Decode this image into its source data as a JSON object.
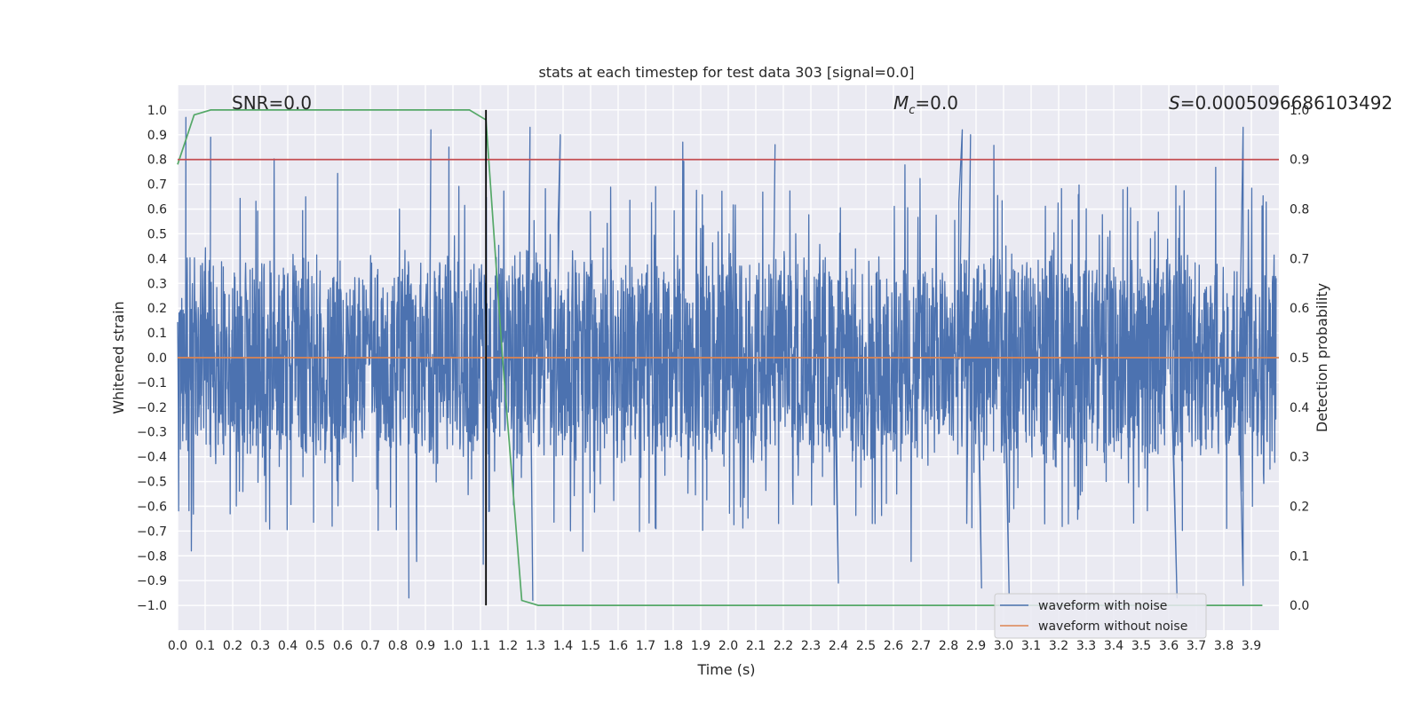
{
  "chart_data": {
    "type": "line",
    "title": "stats at each timestep for test data 303 [signal=0.0]",
    "xlabel": "Time (s)",
    "ylabel": "Whitened strain",
    "y2label": "Detection probability",
    "xlim": [
      0.0,
      4.0
    ],
    "ylim": [
      -1.1,
      1.1
    ],
    "y2lim": [
      -0.05,
      1.05
    ],
    "xticks": [
      "0.0",
      "0.1",
      "0.2",
      "0.3",
      "0.4",
      "0.5",
      "0.6",
      "0.7",
      "0.8",
      "0.9",
      "1.0",
      "1.1",
      "1.2",
      "1.3",
      "1.4",
      "1.5",
      "1.6",
      "1.7",
      "1.8",
      "1.9",
      "2.0",
      "2.1",
      "2.2",
      "2.3",
      "2.4",
      "2.5",
      "2.6",
      "2.7",
      "2.8",
      "2.9",
      "3.0",
      "3.1",
      "3.2",
      "3.3",
      "3.4",
      "3.5",
      "3.6",
      "3.7",
      "3.8",
      "3.9"
    ],
    "yticks": [
      "1.0",
      "0.9",
      "0.8",
      "0.7",
      "0.6",
      "0.5",
      "0.4",
      "0.3",
      "0.2",
      "0.1",
      "0.0",
      "−0.1",
      "−0.2",
      "−0.3",
      "−0.4",
      "−0.5",
      "−0.6",
      "−0.7",
      "−0.8",
      "−0.9",
      "−1.0"
    ],
    "y2ticks": [
      "1.0",
      "0.9",
      "0.8",
      "0.7",
      "0.6",
      "0.5",
      "0.4",
      "0.3",
      "0.2",
      "0.1",
      "0.0"
    ],
    "grid": true,
    "legend_position": "lower-right",
    "annotations": {
      "snr": "SNR=0.0",
      "mc_symbol": "M",
      "mc_sub": "c",
      "mc_value": "=0.0",
      "s_symbol": "S",
      "s_value": "=0.0005096686103492"
    },
    "series": [
      {
        "name": "waveform with noise",
        "color": "#4c72b0",
        "note": "dense noise, amplitude mostly within ±0.4 with spikes to about ±0.97",
        "peaks": [
          {
            "x": 0.03,
            "y": 0.97
          },
          {
            "x": 0.12,
            "y": 0.89
          },
          {
            "x": 0.84,
            "y": -0.97
          },
          {
            "x": 0.92,
            "y": 0.92
          },
          {
            "x": 1.28,
            "y": 0.93
          },
          {
            "x": 1.29,
            "y": -0.98
          },
          {
            "x": 1.39,
            "y": 0.9
          },
          {
            "x": 2.17,
            "y": 0.86
          },
          {
            "x": 2.4,
            "y": -0.91
          },
          {
            "x": 2.85,
            "y": 0.92
          },
          {
            "x": 2.88,
            "y": 0.9
          },
          {
            "x": 2.92,
            "y": -0.93
          },
          {
            "x": 3.02,
            "y": -0.95
          },
          {
            "x": 3.63,
            "y": -0.97
          },
          {
            "x": 3.87,
            "y": 0.93
          },
          {
            "x": 3.87,
            "y": -0.92
          }
        ]
      },
      {
        "name": "waveform without noise",
        "color": "#dd8452",
        "x": [
          0.0,
          4.0
        ],
        "y": [
          0.0,
          0.0
        ]
      },
      {
        "name": "",
        "axis": "right",
        "color": "#55a868",
        "x": [
          0.0,
          0.06,
          0.12,
          1.06,
          1.12,
          1.18,
          1.23,
          1.25,
          1.31,
          3.94
        ],
        "y": [
          0.89,
          0.99,
          1.0,
          1.0,
          0.98,
          0.5,
          0.15,
          0.01,
          0.0,
          0.0
        ]
      },
      {
        "name": "",
        "axis": "right",
        "color": "#c44e52",
        "x": [
          0.0,
          4.0
        ],
        "y": [
          0.9,
          0.9
        ]
      },
      {
        "name": "",
        "color": "#000000",
        "x": [
          1.12,
          1.12
        ],
        "y": [
          -1.0,
          1.0
        ]
      }
    ]
  }
}
